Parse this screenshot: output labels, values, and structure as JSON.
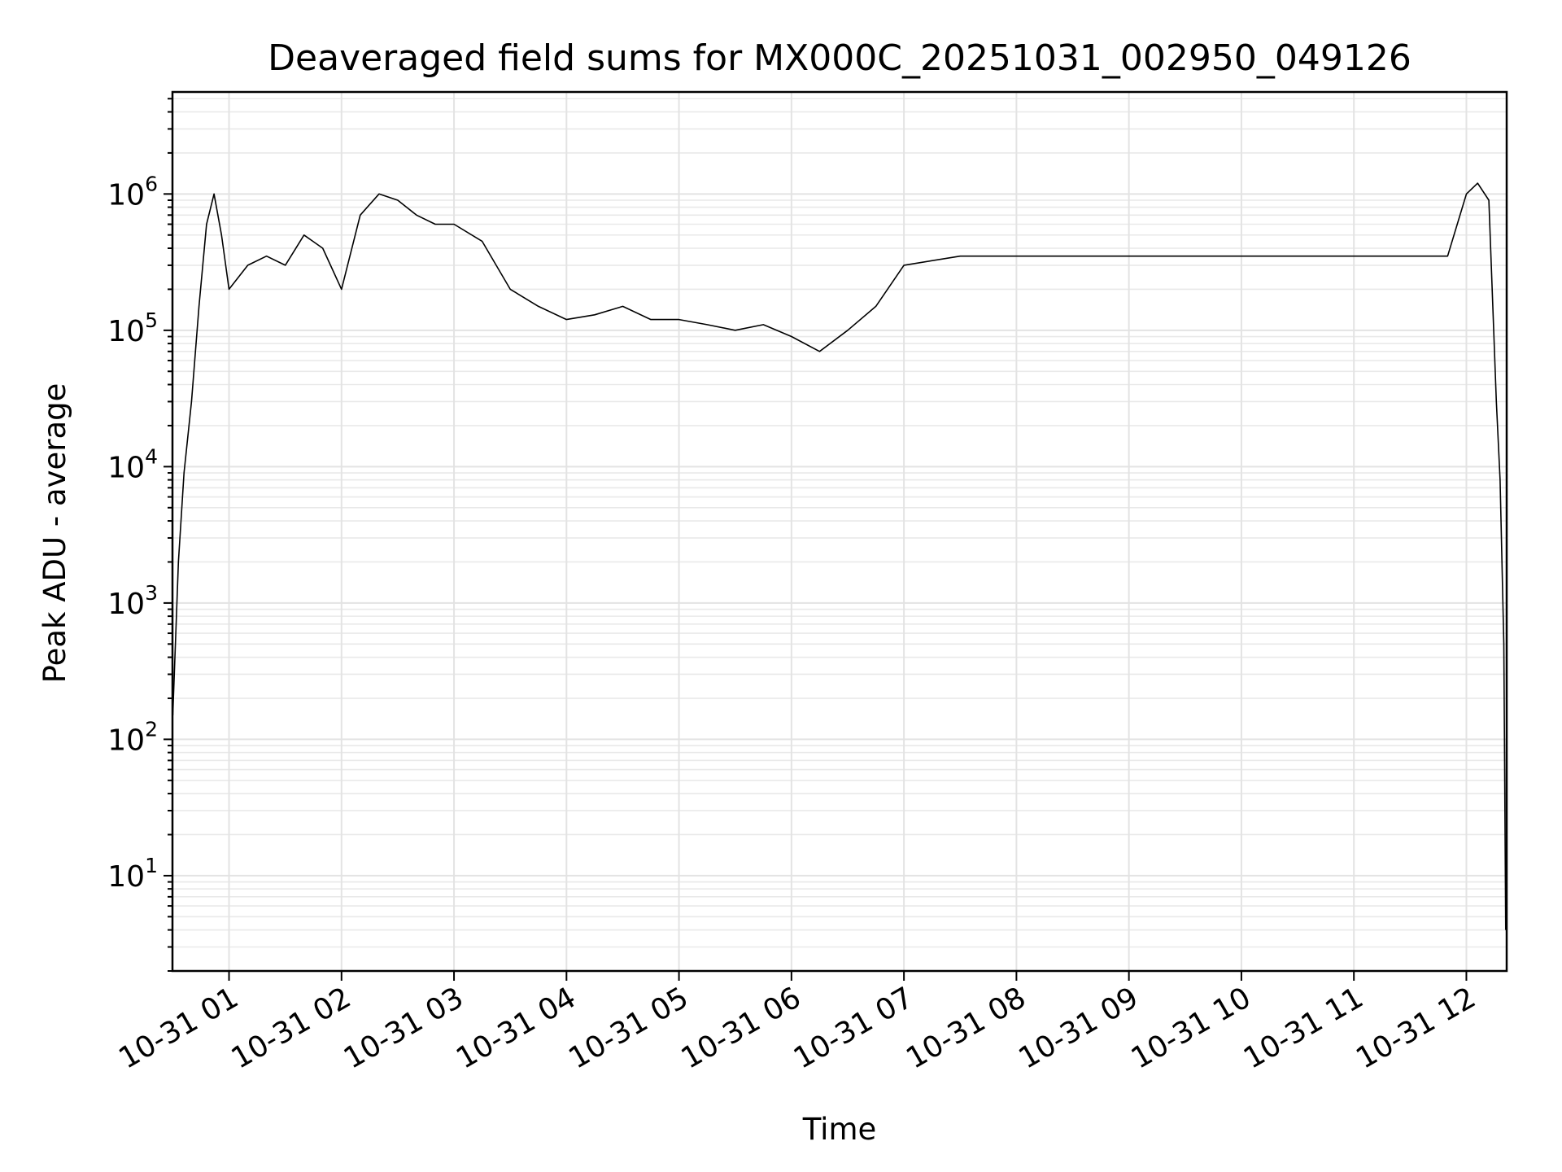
{
  "chart_data": {
    "type": "line",
    "title": "Deaveraged field sums for MX000C_20251031_002950_049126",
    "xlabel": "Time",
    "ylabel": "Peak ADU - average",
    "yscale": "log",
    "ylim": [
      2,
      5600000
    ],
    "xlim": [
      "2025-10-31T00:29:50",
      "2025-10-31T12:21:30"
    ],
    "grid": true,
    "x_ticks": [
      "10-31 01",
      "10-31 02",
      "10-31 03",
      "10-31 04",
      "10-31 05",
      "10-31 06",
      "10-31 07",
      "10-31 08",
      "10-31 09",
      "10-31 10",
      "10-31 11",
      "10-31 12"
    ],
    "x_tick_times": [
      "2025-10-31T01:00",
      "2025-10-31T02:00",
      "2025-10-31T03:00",
      "2025-10-31T04:00",
      "2025-10-31T05:00",
      "2025-10-31T06:00",
      "2025-10-31T07:00",
      "2025-10-31T08:00",
      "2025-10-31T09:00",
      "2025-10-31T10:00",
      "2025-10-31T11:00",
      "2025-10-31T12:00"
    ],
    "y_ticks": [
      {
        "value": 10,
        "base": "10",
        "exp": "1"
      },
      {
        "value": 100,
        "base": "10",
        "exp": "2"
      },
      {
        "value": 1000,
        "base": "10",
        "exp": "3"
      },
      {
        "value": 10000,
        "base": "10",
        "exp": "4"
      },
      {
        "value": 100000,
        "base": "10",
        "exp": "5"
      },
      {
        "value": 1000000,
        "base": "10",
        "exp": "6"
      }
    ],
    "series": [
      {
        "color": "#000000",
        "x": [
          "2025-10-31T00:30",
          "2025-10-31T00:33",
          "2025-10-31T00:36",
          "2025-10-31T00:40",
          "2025-10-31T00:44",
          "2025-10-31T00:48",
          "2025-10-31T00:52",
          "2025-10-31T00:56",
          "2025-10-31T01:00",
          "2025-10-31T01:10",
          "2025-10-31T01:20",
          "2025-10-31T01:30",
          "2025-10-31T01:40",
          "2025-10-31T01:50",
          "2025-10-31T02:00",
          "2025-10-31T02:10",
          "2025-10-31T02:20",
          "2025-10-31T02:30",
          "2025-10-31T02:40",
          "2025-10-31T02:50",
          "2025-10-31T03:00",
          "2025-10-31T03:15",
          "2025-10-31T03:30",
          "2025-10-31T03:45",
          "2025-10-31T04:00",
          "2025-10-31T04:15",
          "2025-10-31T04:30",
          "2025-10-31T04:45",
          "2025-10-31T05:00",
          "2025-10-31T05:15",
          "2025-10-31T05:30",
          "2025-10-31T05:45",
          "2025-10-31T06:00",
          "2025-10-31T06:15",
          "2025-10-31T06:30",
          "2025-10-31T06:45",
          "2025-10-31T07:00",
          "2025-10-31T07:30",
          "2025-10-31T08:00",
          "2025-10-31T08:30",
          "2025-10-31T09:00",
          "2025-10-31T09:30",
          "2025-10-31T10:00",
          "2025-10-31T10:30",
          "2025-10-31T11:00",
          "2025-10-31T11:30",
          "2025-10-31T11:50",
          "2025-10-31T12:00",
          "2025-10-31T12:06",
          "2025-10-31T12:12",
          "2025-10-31T12:16",
          "2025-10-31T12:18",
          "2025-10-31T12:20",
          "2025-10-31T12:21"
        ],
        "y": [
          150,
          2000,
          9000,
          30000,
          150000,
          600000,
          1000000,
          500000,
          200000,
          300000,
          350000,
          300000,
          500000,
          400000,
          200000,
          700000,
          1000000,
          900000,
          700000,
          600000,
          600000,
          450000,
          200000,
          150000,
          120000,
          130000,
          150000,
          120000,
          120000,
          110000,
          100000,
          110000,
          90000,
          70000,
          100000,
          150000,
          300000,
          350000,
          350000,
          350000,
          350000,
          350000,
          350000,
          350000,
          350000,
          350000,
          350000,
          1000000,
          1200000,
          900000,
          30000,
          8000,
          500,
          4
        ]
      }
    ]
  }
}
